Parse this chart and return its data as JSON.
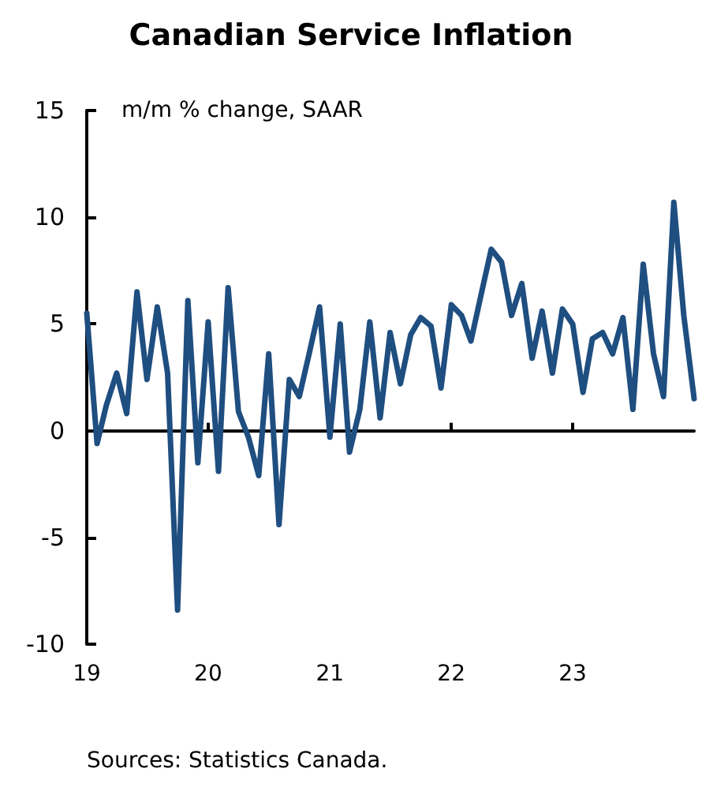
{
  "chart_data": {
    "type": "line",
    "title": "Canadian Service Inflation",
    "ylabel": "m/m % change, SAAR",
    "annotations": [
      "Sources: Statistics Canada."
    ],
    "x": [
      "2019-01",
      "2019-02",
      "2019-03",
      "2019-04",
      "2019-05",
      "2019-06",
      "2019-07",
      "2019-08",
      "2019-09",
      "2019-10",
      "2019-11",
      "2019-12",
      "2020-01",
      "2020-02",
      "2020-03",
      "2020-04",
      "2020-05",
      "2020-06",
      "2020-07",
      "2020-08",
      "2020-09",
      "2020-10",
      "2020-11",
      "2020-12",
      "2021-01",
      "2021-02",
      "2021-03",
      "2021-04",
      "2021-05",
      "2021-06",
      "2021-07",
      "2021-08",
      "2021-09",
      "2021-10",
      "2021-11",
      "2021-12",
      "2022-01",
      "2022-02",
      "2022-03",
      "2022-04",
      "2022-05",
      "2022-06",
      "2022-07",
      "2022-08",
      "2022-09",
      "2022-10",
      "2022-11",
      "2022-12",
      "2023-01",
      "2023-02",
      "2023-03",
      "2023-04",
      "2023-05",
      "2023-06",
      "2023-07",
      "2023-08",
      "2023-09",
      "2023-10",
      "2023-11",
      "2023-12",
      "2024-01"
    ],
    "series": [
      {
        "color": "#1f4e80",
        "values": [
          5.5,
          -0.6,
          1.2,
          2.7,
          0.8,
          6.5,
          2.4,
          5.8,
          2.7,
          -8.4,
          6.1,
          -1.5,
          5.1,
          -1.9,
          6.7,
          0.9,
          -0.3,
          -2.1,
          3.6,
          -4.4,
          2.4,
          1.6,
          3.7,
          5.8,
          -0.3,
          5.0,
          -1.0,
          1.0,
          5.1,
          0.6,
          4.6,
          2.2,
          4.5,
          5.3,
          4.9,
          2.0,
          5.9,
          5.4,
          4.2,
          6.4,
          8.5,
          7.9,
          5.4,
          6.9,
          3.4,
          5.6,
          2.7,
          5.7,
          5.0,
          1.8,
          4.3,
          4.6,
          3.6,
          5.3,
          1.0,
          7.8,
          3.6,
          1.6,
          10.7,
          5.4,
          1.5
        ]
      }
    ],
    "xlim": [
      "2019-01",
      "2024-01"
    ],
    "xticks": [
      {
        "value": "2019-01",
        "label": "19"
      },
      {
        "value": "2020-01",
        "label": "20"
      },
      {
        "value": "2021-01",
        "label": "21"
      },
      {
        "value": "2022-01",
        "label": "22"
      },
      {
        "value": "2023-01",
        "label": "23"
      }
    ],
    "ylim": [
      -10,
      15
    ],
    "yticks": [
      -10,
      -5,
      0,
      5,
      10,
      15
    ],
    "marker": "none",
    "line_style": "solid"
  }
}
